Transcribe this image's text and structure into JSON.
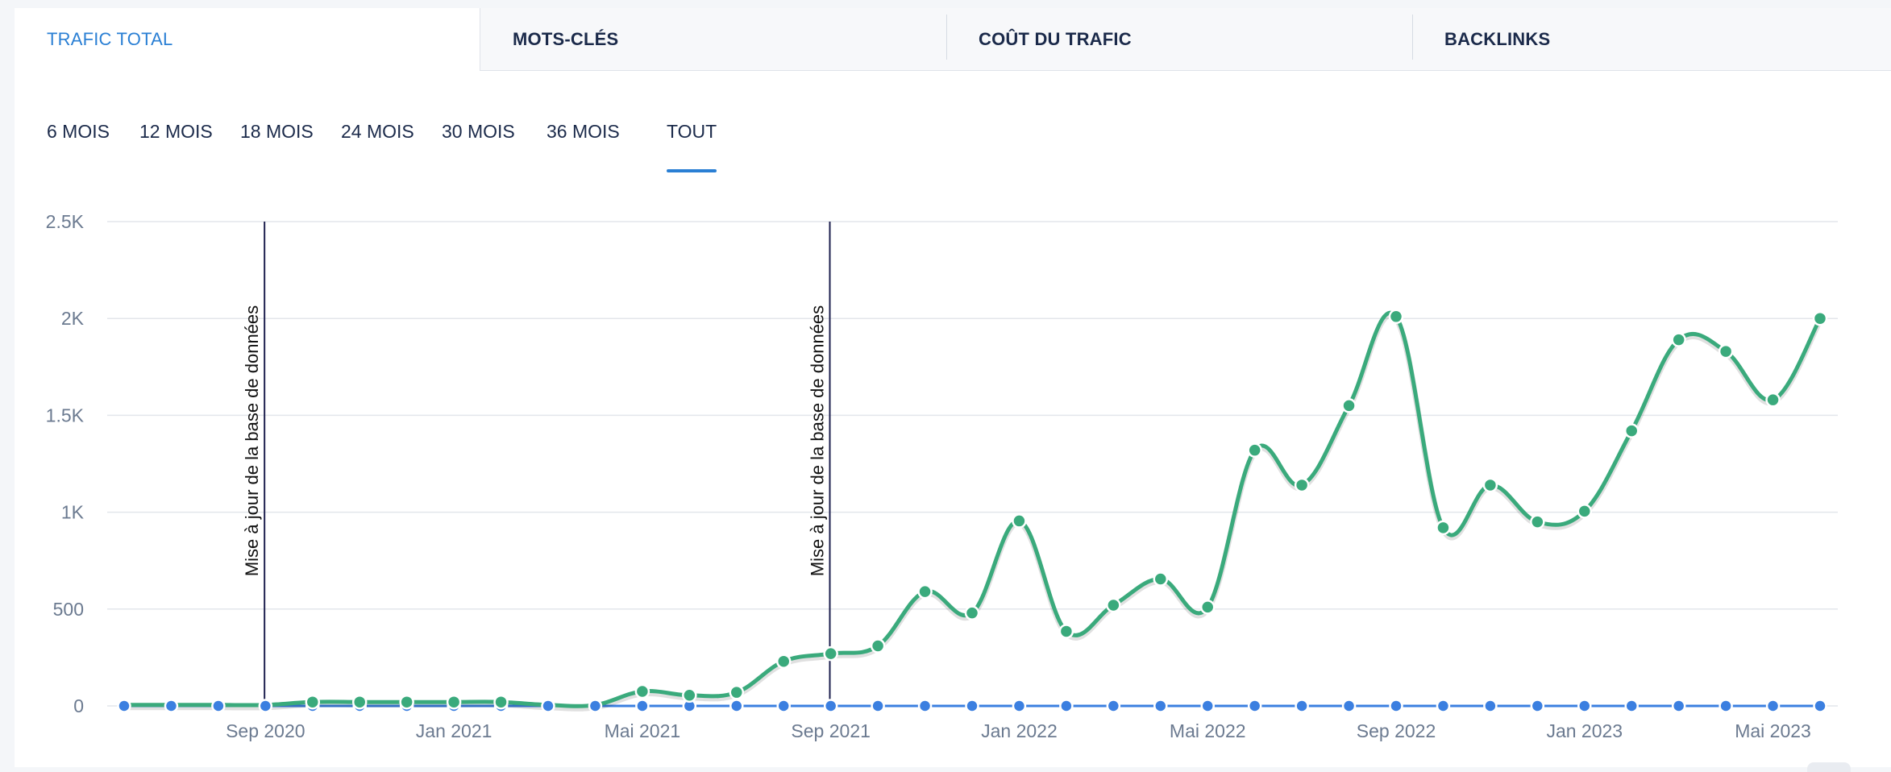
{
  "tabs": [
    {
      "label": "TRAFIC TOTAL",
      "active": true
    },
    {
      "label": "MOTS-CLÉS",
      "active": false
    },
    {
      "label": "COÛT DU TRAFIC",
      "active": false
    },
    {
      "label": "BACKLINKS",
      "active": false
    }
  ],
  "periods": [
    {
      "label": "6 MOIS",
      "active": false
    },
    {
      "label": "12 MOIS",
      "active": false
    },
    {
      "label": "18 MOIS",
      "active": false
    },
    {
      "label": "24 MOIS",
      "active": false
    },
    {
      "label": "30 MOIS",
      "active": false
    },
    {
      "label": "36 MOIS",
      "active": false
    },
    {
      "label": "TOUT",
      "active": true
    }
  ],
  "colors": {
    "accent": "#2a7fd4",
    "traffic_line": "#3aaa7c",
    "baseline_line": "#3b7fe0",
    "annotation_line": "#1d1f4e",
    "grid": "#e3e6eb",
    "axis_text": "#6b7a90"
  },
  "chart_data": {
    "type": "line",
    "title": "",
    "xlabel": "",
    "ylabel": "",
    "ylim": [
      0,
      2500
    ],
    "y_ticks": [
      "0",
      "500",
      "1K",
      "1.5K",
      "2K",
      "2.5K"
    ],
    "x_tick_labels": [
      "Sep 2020",
      "Jan 2021",
      "Mai 2021",
      "Sep 2021",
      "Jan 2022",
      "Mai 2022",
      "Sep 2022",
      "Jan 2023",
      "Mai 2023"
    ],
    "x_tick_months": [
      "2020-09",
      "2021-01",
      "2021-05",
      "2021-09",
      "2022-01",
      "2022-05",
      "2022-09",
      "2023-01",
      "2023-05"
    ],
    "grid": true,
    "x": [
      "2020-06",
      "2020-07",
      "2020-08",
      "2020-09",
      "2020-10",
      "2020-11",
      "2020-12",
      "2021-01",
      "2021-02",
      "2021-03",
      "2021-04",
      "2021-05",
      "2021-06",
      "2021-07",
      "2021-08",
      "2021-09",
      "2021-10",
      "2021-11",
      "2021-12",
      "2022-01",
      "2022-02",
      "2022-03",
      "2022-04",
      "2022-05",
      "2022-06",
      "2022-07",
      "2022-08",
      "2022-09",
      "2022-10",
      "2022-11",
      "2022-12",
      "2023-01",
      "2023-02",
      "2023-03",
      "2023-04",
      "2023-05",
      "2023-06"
    ],
    "series": [
      {
        "values": [
          5,
          5,
          5,
          5,
          20,
          20,
          20,
          20,
          20,
          5,
          5,
          75,
          55,
          70,
          230,
          270,
          310,
          590,
          480,
          955,
          385,
          520,
          655,
          510,
          1320,
          1140,
          1550,
          2010,
          920,
          1140,
          950,
          1005,
          1420,
          1890,
          1830,
          1580,
          2000
        ]
      },
      {
        "values": [
          0,
          0,
          0,
          0,
          0,
          0,
          0,
          0,
          0,
          0,
          0,
          0,
          0,
          0,
          0,
          0,
          0,
          0,
          0,
          0,
          0,
          0,
          0,
          0,
          0,
          0,
          0,
          0,
          0,
          0,
          0,
          0,
          0,
          0,
          0,
          0,
          0
        ]
      }
    ],
    "annotations": [
      {
        "x": "2020-08",
        "label": "Mise à jour de la base de données"
      },
      {
        "x": "2021-08",
        "label": "Mise à jour de la base de données"
      }
    ]
  }
}
